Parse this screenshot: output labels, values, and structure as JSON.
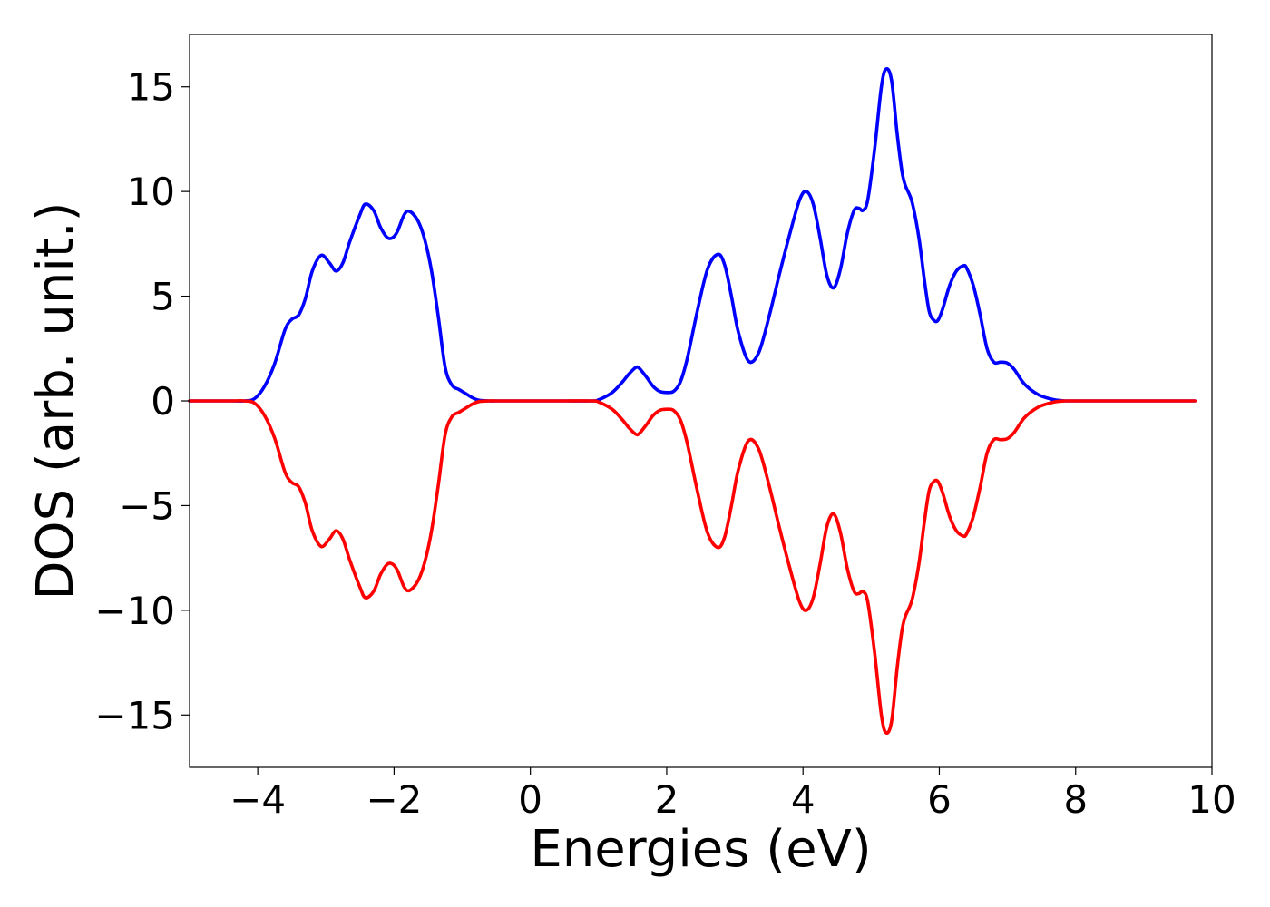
{
  "chart_data": {
    "type": "line",
    "title": "",
    "xlabel": "Energies (eV)",
    "ylabel": "DOS (arb. unit.)",
    "xlim": [
      -5,
      10
    ],
    "ylim": [
      -17.5,
      17.5
    ],
    "x_ticks": [
      -4,
      -2,
      0,
      2,
      4,
      6,
      8,
      10
    ],
    "x_tick_labels": [
      "−4",
      "−2",
      "0",
      "2",
      "4",
      "6",
      "8",
      "10"
    ],
    "y_ticks": [
      -15,
      -10,
      -5,
      0,
      5,
      10,
      15
    ],
    "y_tick_labels": [
      "−15",
      "−10",
      "−5",
      "0",
      "5",
      "10",
      "15"
    ],
    "grid": false,
    "legend": "none",
    "series": [
      {
        "color": "#0000ff",
        "x": [
          -5.0,
          -4.4,
          -4.2,
          -4.05,
          -3.9,
          -3.75,
          -3.6,
          -3.5,
          -3.4,
          -3.3,
          -3.2,
          -3.07,
          -2.95,
          -2.85,
          -2.75,
          -2.65,
          -2.5,
          -2.42,
          -2.3,
          -2.2,
          -2.1,
          -2.02,
          -1.95,
          -1.85,
          -1.77,
          -1.65,
          -1.55,
          -1.45,
          -1.35,
          -1.25,
          -1.15,
          -1.05,
          -0.95,
          -0.85,
          -0.75,
          -0.6,
          -0.5,
          0.0,
          0.5,
          0.9,
          1.0,
          1.2,
          1.35,
          1.45,
          1.55,
          1.6,
          1.7,
          1.8,
          1.9,
          2.0,
          2.1,
          2.2,
          2.3,
          2.45,
          2.6,
          2.75,
          2.85,
          2.95,
          3.05,
          3.2,
          3.35,
          3.5,
          3.65,
          3.8,
          3.95,
          4.05,
          4.15,
          4.25,
          4.35,
          4.45,
          4.55,
          4.65,
          4.75,
          4.82,
          4.88,
          4.95,
          5.05,
          5.15,
          5.22,
          5.3,
          5.38,
          5.45,
          5.5,
          5.6,
          5.7,
          5.78,
          5.85,
          5.92,
          5.98,
          6.05,
          6.15,
          6.25,
          6.35,
          6.4,
          6.5,
          6.6,
          6.7,
          6.8,
          6.9,
          7.0,
          7.1,
          7.25,
          7.45,
          7.65,
          7.8,
          8.0,
          9.0,
          9.75
        ],
        "y": [
          0,
          0,
          0,
          0.1,
          0.7,
          1.8,
          3.4,
          3.9,
          4.1,
          4.9,
          6.2,
          6.95,
          6.6,
          6.2,
          6.6,
          7.6,
          8.9,
          9.4,
          9.1,
          8.3,
          7.8,
          7.8,
          8.1,
          8.9,
          9.05,
          8.6,
          7.7,
          6.2,
          4.0,
          1.6,
          0.75,
          0.55,
          0.35,
          0.15,
          0.03,
          0,
          0,
          0,
          0,
          0,
          0.05,
          0.4,
          0.9,
          1.3,
          1.6,
          1.55,
          1.15,
          0.7,
          0.45,
          0.4,
          0.45,
          0.9,
          2.0,
          4.3,
          6.3,
          7.0,
          6.5,
          5.0,
          3.3,
          1.9,
          2.3,
          4.0,
          6.0,
          7.9,
          9.6,
          10.0,
          9.4,
          7.8,
          6.0,
          5.4,
          6.3,
          8.0,
          9.1,
          9.2,
          9.1,
          9.6,
          12.0,
          15.0,
          15.85,
          15.3,
          12.8,
          11.0,
          10.3,
          9.5,
          7.8,
          5.8,
          4.3,
          3.85,
          3.85,
          4.4,
          5.5,
          6.2,
          6.45,
          6.35,
          5.5,
          4.1,
          2.5,
          1.85,
          1.85,
          1.8,
          1.5,
          0.8,
          0.3,
          0.08,
          0.01,
          0,
          0,
          0
        ]
      },
      {
        "color": "#ff0000",
        "x": [
          -5.0,
          -4.4,
          -4.2,
          -4.05,
          -3.9,
          -3.75,
          -3.6,
          -3.5,
          -3.4,
          -3.3,
          -3.2,
          -3.07,
          -2.95,
          -2.85,
          -2.75,
          -2.65,
          -2.5,
          -2.42,
          -2.3,
          -2.2,
          -2.1,
          -2.02,
          -1.95,
          -1.85,
          -1.77,
          -1.65,
          -1.55,
          -1.45,
          -1.35,
          -1.25,
          -1.15,
          -1.05,
          -0.95,
          -0.85,
          -0.75,
          -0.6,
          -0.5,
          0.0,
          0.5,
          0.9,
          1.0,
          1.2,
          1.35,
          1.45,
          1.55,
          1.6,
          1.7,
          1.8,
          1.9,
          2.0,
          2.1,
          2.2,
          2.3,
          2.45,
          2.6,
          2.75,
          2.85,
          2.95,
          3.05,
          3.2,
          3.35,
          3.5,
          3.65,
          3.8,
          3.95,
          4.05,
          4.15,
          4.25,
          4.35,
          4.45,
          4.55,
          4.65,
          4.75,
          4.82,
          4.88,
          4.95,
          5.05,
          5.15,
          5.22,
          5.3,
          5.38,
          5.45,
          5.5,
          5.6,
          5.7,
          5.78,
          5.85,
          5.92,
          5.98,
          6.05,
          6.15,
          6.25,
          6.35,
          6.4,
          6.5,
          6.6,
          6.7,
          6.8,
          6.9,
          7.0,
          7.1,
          7.25,
          7.45,
          7.65,
          7.8,
          8.0,
          9.0,
          9.75
        ],
        "y": [
          0,
          0,
          0,
          -0.1,
          -0.7,
          -1.8,
          -3.4,
          -3.9,
          -4.1,
          -4.9,
          -6.2,
          -6.95,
          -6.6,
          -6.2,
          -6.6,
          -7.6,
          -8.9,
          -9.4,
          -9.1,
          -8.3,
          -7.8,
          -7.8,
          -8.1,
          -8.9,
          -9.05,
          -8.6,
          -7.7,
          -6.2,
          -4.0,
          -1.6,
          -0.75,
          -0.55,
          -0.35,
          -0.15,
          -0.03,
          0,
          0,
          0,
          0,
          0,
          -0.05,
          -0.4,
          -0.9,
          -1.3,
          -1.6,
          -1.55,
          -1.15,
          -0.7,
          -0.45,
          -0.4,
          -0.45,
          -0.9,
          -2.0,
          -4.3,
          -6.3,
          -7.0,
          -6.5,
          -5.0,
          -3.3,
          -1.9,
          -2.3,
          -4.0,
          -6.0,
          -7.9,
          -9.6,
          -10.0,
          -9.4,
          -7.8,
          -6.0,
          -5.4,
          -6.3,
          -8.0,
          -9.1,
          -9.2,
          -9.1,
          -9.6,
          -12.0,
          -15.0,
          -15.85,
          -15.3,
          -12.8,
          -11.0,
          -10.3,
          -9.5,
          -7.8,
          -5.8,
          -4.3,
          -3.85,
          -3.85,
          -4.4,
          -5.5,
          -6.2,
          -6.45,
          -6.35,
          -5.5,
          -4.1,
          -2.5,
          -1.85,
          -1.85,
          -1.8,
          -1.5,
          -0.8,
          -0.3,
          -0.08,
          -0.01,
          0,
          0,
          0
        ]
      }
    ]
  }
}
